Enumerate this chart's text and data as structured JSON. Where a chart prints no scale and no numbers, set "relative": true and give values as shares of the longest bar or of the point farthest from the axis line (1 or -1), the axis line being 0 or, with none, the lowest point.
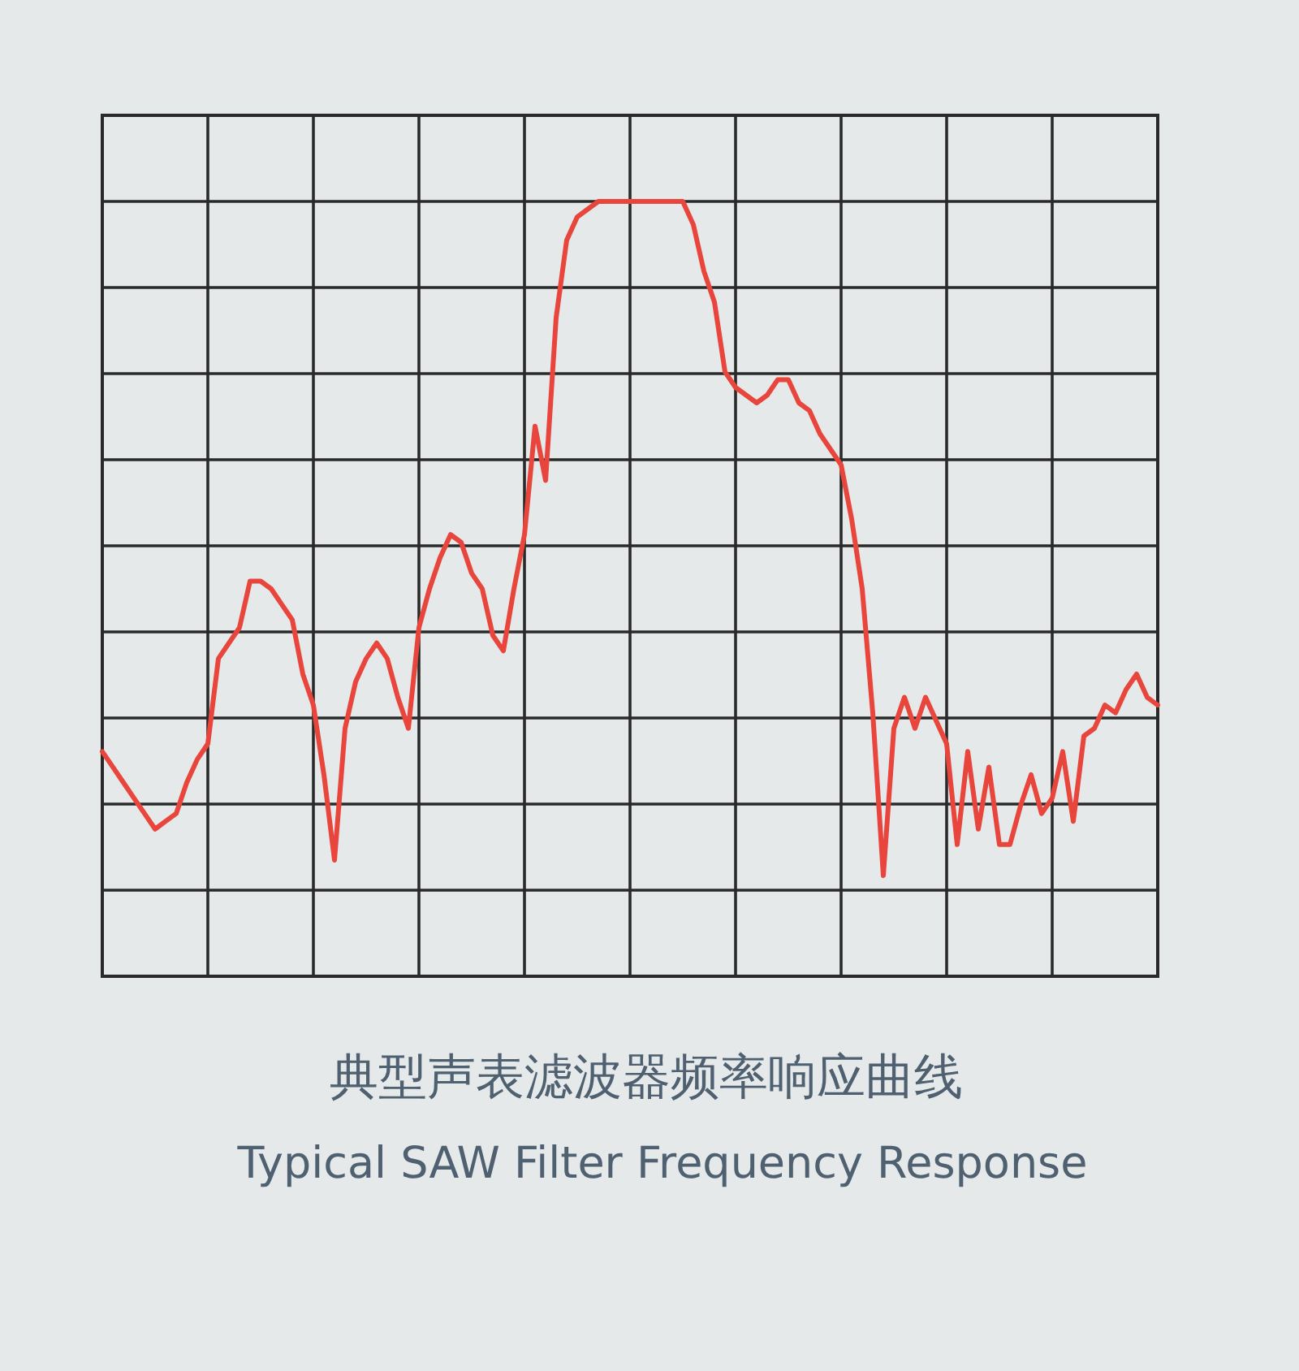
{
  "chart_data": {
    "type": "line",
    "title": "典型声表滤波器频率响应曲线",
    "subtitle": "Typical SAW Filter Frequency Response",
    "relative": true,
    "grid": true,
    "categories": [
      null,
      null,
      null,
      null,
      null,
      null,
      null,
      null,
      null,
      null,
      null,
      null,
      null,
      null,
      null,
      null,
      null,
      null,
      null,
      null,
      null,
      null,
      null,
      null,
      null,
      null,
      null,
      null,
      null,
      null,
      null,
      null,
      null,
      null,
      null,
      null,
      null,
      null,
      null,
      null,
      null,
      null,
      null,
      null,
      null,
      null,
      null,
      null,
      null,
      null,
      null,
      null,
      null,
      null,
      null,
      null,
      null,
      null,
      null,
      null,
      null,
      null,
      null,
      null,
      null,
      null,
      null,
      null,
      null,
      null,
      null,
      null,
      null,
      null,
      null,
      null,
      null,
      null,
      null,
      null,
      null,
      null,
      null,
      null,
      null,
      null,
      null,
      null,
      null,
      null,
      null,
      null,
      null,
      null,
      null,
      null,
      null,
      null,
      null,
      null,
      null
    ],
    "series": [
      {
        "color": "#e8453c",
        "values": [
          0.29,
          0.27,
          0.25,
          0.23,
          0.21,
          0.19,
          0.2,
          0.21,
          0.25,
          0.28,
          0.3,
          0.41,
          0.43,
          0.45,
          0.51,
          0.51,
          0.5,
          0.48,
          0.46,
          0.39,
          0.35,
          0.26,
          0.15,
          0.32,
          0.38,
          0.41,
          0.43,
          0.41,
          0.36,
          0.32,
          0.45,
          0.5,
          0.54,
          0.57,
          0.56,
          0.52,
          0.5,
          0.44,
          0.42,
          0.5,
          0.57,
          0.71,
          0.64,
          0.85,
          0.95,
          0.98,
          0.99,
          1,
          1,
          1,
          1,
          1,
          1,
          1,
          1,
          1,
          0.97,
          0.91,
          0.87,
          0.78,
          0.76,
          0.75,
          0.74,
          0.75,
          0.77,
          0.77,
          0.74,
          0.73,
          0.7,
          0.68,
          0.66,
          0.59,
          0.5,
          0.34,
          0.13,
          0.32,
          0.36,
          0.32,
          0.36,
          0.33,
          0.3,
          0.17,
          0.29,
          0.19,
          0.27,
          0.17,
          0.17,
          0.22,
          0.26,
          0.21,
          0.23,
          0.29,
          0.2,
          0.31,
          0.32,
          0.35,
          0.34,
          0.37,
          0.39,
          0.36,
          0.35
        ]
      }
    ]
  }
}
